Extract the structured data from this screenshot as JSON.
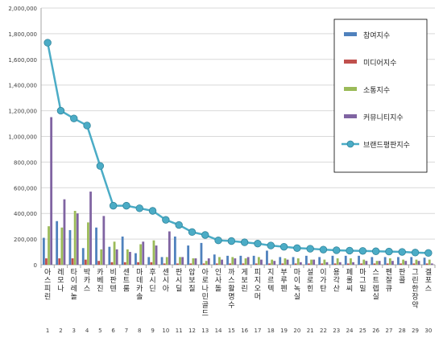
{
  "chart_data": {
    "type": "bar",
    "categories": [
      "아스피린",
      "레모나",
      "타이레놀",
      "박카스",
      "카베진",
      "비판텐",
      "센트룸",
      "마데카솔",
      "후시딘",
      "센시아",
      "판시딜",
      "압보칠",
      "아로나민골드",
      "인사돌",
      "까스활명수",
      "게보린",
      "피지오머",
      "지르텍",
      "부루펜",
      "마이녹실",
      "설로힌",
      "이가탄",
      "용각산",
      "페롤씨",
      "마그밀",
      "스트렙실",
      "펜잘큐",
      "판콜",
      "그린한장약",
      "겔포스"
    ],
    "ranks": [
      "1",
      "2",
      "3",
      "4",
      "5",
      "6",
      "7",
      "8",
      "9",
      "10",
      "11",
      "12",
      "13",
      "14",
      "15",
      "16",
      "17",
      "18",
      "19",
      "20",
      "21",
      "22",
      "23",
      "24",
      "25",
      "26",
      "27",
      "28",
      "29",
      "30"
    ],
    "ylim": [
      0,
      2000000
    ],
    "yticks": [
      "0",
      "200,000",
      "400,000",
      "600,000",
      "800,000",
      "1,000,000",
      "1,200,000",
      "1,400,000",
      "1,600,000",
      "1,800,000",
      "2,000,000"
    ],
    "series": [
      {
        "name": "참여지수",
        "kind": "bar",
        "color": "#4f81bd",
        "values": [
          210000,
          340000,
          270000,
          130000,
          290000,
          140000,
          220000,
          90000,
          60000,
          60000,
          220000,
          150000,
          170000,
          80000,
          70000,
          70000,
          70000,
          110000,
          60000,
          60000,
          70000,
          60000,
          70000,
          70000,
          70000,
          60000,
          60000,
          60000,
          60000,
          55000
        ]
      },
      {
        "name": "미디어지수",
        "kind": "bar",
        "color": "#c0504d",
        "values": [
          50000,
          50000,
          50000,
          40000,
          30000,
          20000,
          20000,
          20000,
          20000,
          10000,
          10000,
          10000,
          10000,
          10000,
          10000,
          10000,
          10000,
          10000,
          10000,
          10000,
          10000,
          10000,
          10000,
          10000,
          10000,
          10000,
          10000,
          10000,
          10000,
          10000
        ]
      },
      {
        "name": "소통지수",
        "kind": "bar",
        "color": "#9bbb59",
        "values": [
          300000,
          290000,
          420000,
          330000,
          120000,
          180000,
          120000,
          160000,
          190000,
          60000,
          60000,
          50000,
          30000,
          60000,
          60000,
          50000,
          60000,
          40000,
          50000,
          50000,
          40000,
          40000,
          50000,
          50000,
          40000,
          30000,
          50000,
          40000,
          40000,
          40000
        ]
      },
      {
        "name": "커뮤니티지수",
        "kind": "bar",
        "color": "#8064a2",
        "values": [
          1150000,
          510000,
          400000,
          570000,
          380000,
          120000,
          100000,
          180000,
          150000,
          260000,
          60000,
          50000,
          50000,
          40000,
          50000,
          60000,
          40000,
          30000,
          40000,
          20000,
          40000,
          20000,
          20000,
          20000,
          30000,
          30000,
          30000,
          30000,
          30000,
          10000
        ]
      },
      {
        "name": "브랜드평판지수",
        "kind": "line",
        "color": "#4bacc6",
        "values": [
          1730000,
          1200000,
          1140000,
          1085000,
          770000,
          460000,
          460000,
          440000,
          420000,
          350000,
          310000,
          255000,
          232000,
          190000,
          185000,
          175000,
          165000,
          150000,
          140000,
          130000,
          125000,
          118000,
          113000,
          110000,
          108000,
          105000,
          103000,
          100000,
          95000,
          92000
        ]
      }
    ],
    "legend": [
      "참여지수",
      "미디어지수",
      "소통지수",
      "커뮤니티지수",
      "브랜드평판지수"
    ],
    "grid": true,
    "legend_position": "right"
  }
}
